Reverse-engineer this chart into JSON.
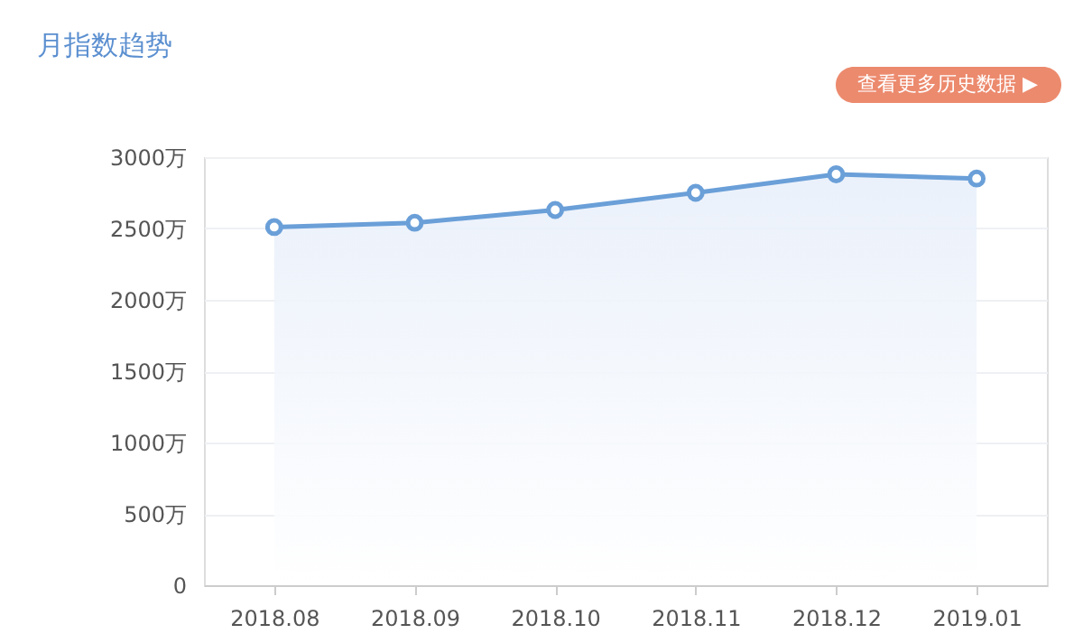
{
  "chart_data": {
    "type": "area",
    "title": "月指数趋势",
    "annotations": [
      "查看更多历史数据 ▶"
    ],
    "categories": [
      "2018.08",
      "2018.09",
      "2018.10",
      "2018.11",
      "2018.12",
      "2019.01"
    ],
    "series": [
      {
        "color": "#6a9fd8",
        "values": [
          2510,
          2540,
          2630,
          2750,
          2880,
          2850
        ]
      }
    ],
    "ylim": [
      0,
      3000
    ],
    "yticks": [
      {
        "value": 0,
        "label": "0"
      },
      {
        "value": 500,
        "label": "500万"
      },
      {
        "value": 1000,
        "label": "1000万"
      },
      {
        "value": 1500,
        "label": "1500万"
      },
      {
        "value": 2000,
        "label": "2000万"
      },
      {
        "value": 2500,
        "label": "2500万"
      },
      {
        "value": 3000,
        "label": "3000万"
      }
    ],
    "grid": "y",
    "marker": "circle",
    "line_style": "solid"
  }
}
